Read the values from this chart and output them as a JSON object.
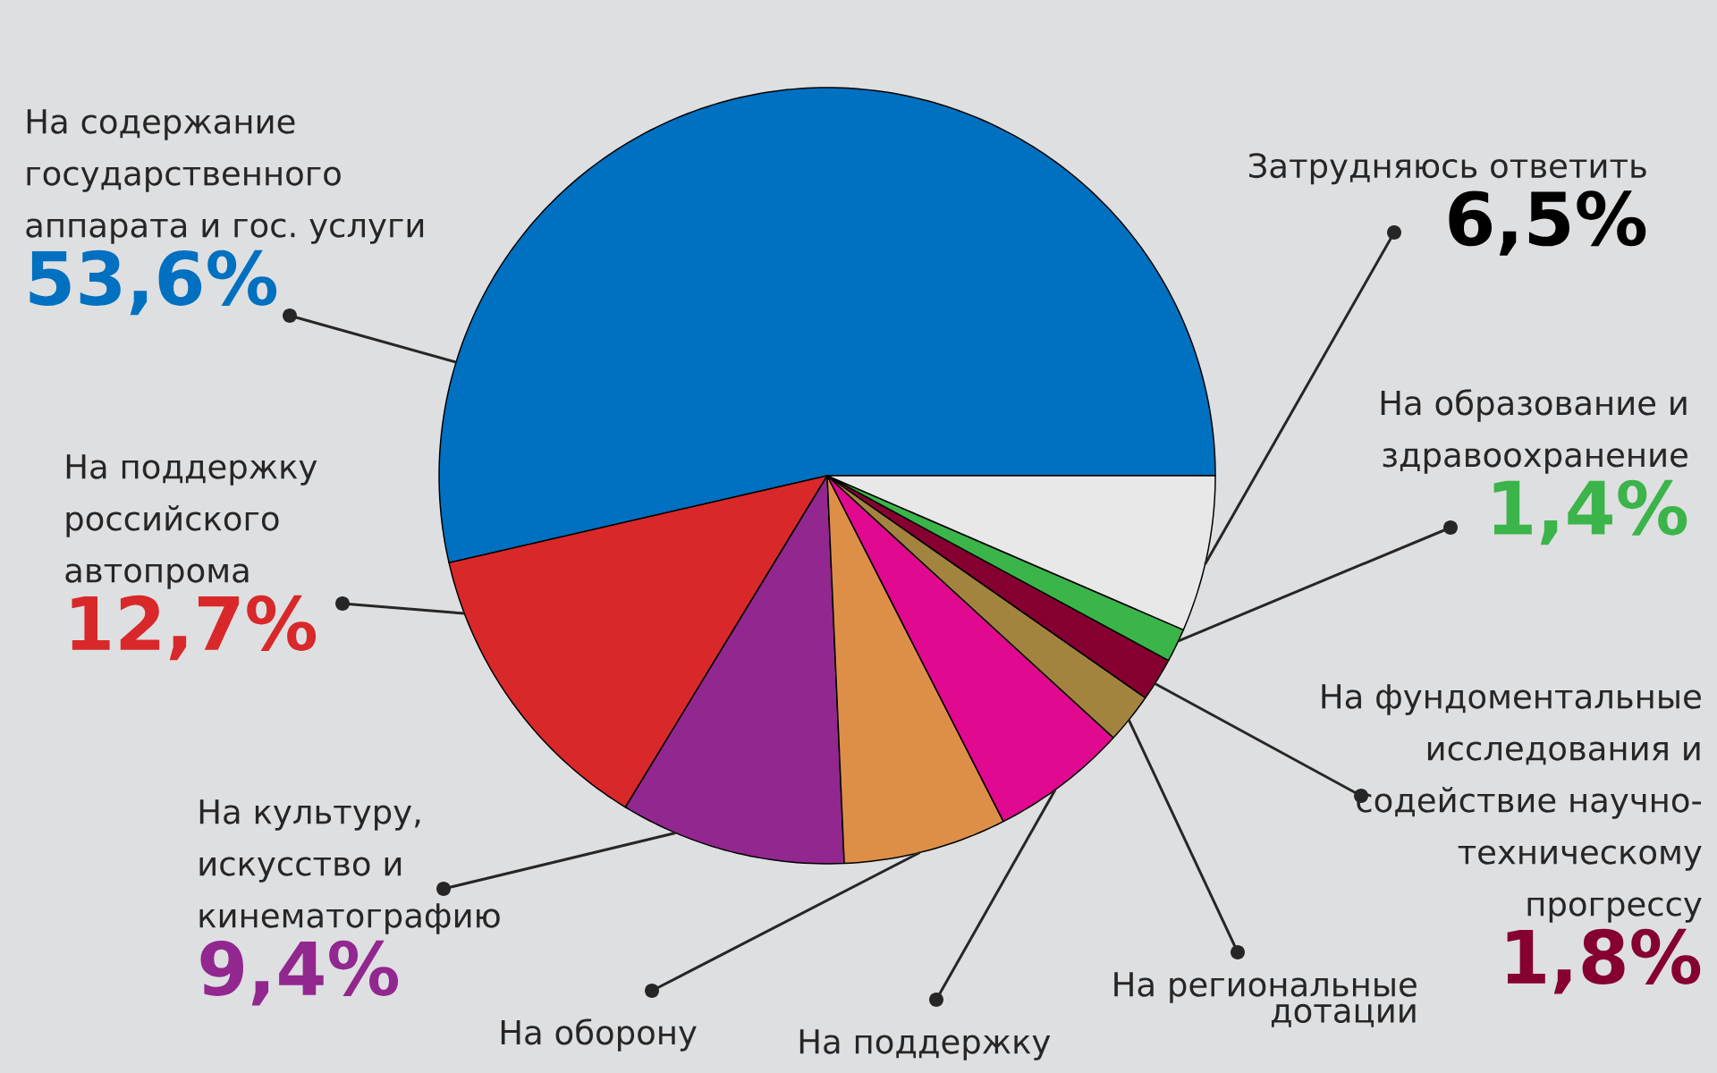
{
  "chart_data": {
    "type": "pie",
    "categories": [
      "На содержание государственного аппарата и гос. услуги",
      "На поддержку российского автопрома",
      "На культуру, искусство и кинематографию",
      "На оборону",
      "На поддержку",
      "На региональные дотации",
      "На фундоментальные исследования и содействие научно-техническому прогрессу",
      "На образование и здравоохранение",
      "Затрудняюсь ответить"
    ],
    "values": [
      53.6,
      12.7,
      9.4,
      6.8,
      5.7,
      2.1,
      1.8,
      1.4,
      6.5
    ],
    "value_labels": [
      "53,6%",
      "12,7%",
      "9,4%",
      null,
      null,
      null,
      "1,8%",
      "1,4%",
      "6,5%"
    ],
    "colors": [
      "#0070c0",
      "#d9282a",
      "#92278f",
      "#dd8f48",
      "#e0098f",
      "#a3843f",
      "#850030",
      "#3bb44a",
      "#e8e8e8"
    ]
  }
}
